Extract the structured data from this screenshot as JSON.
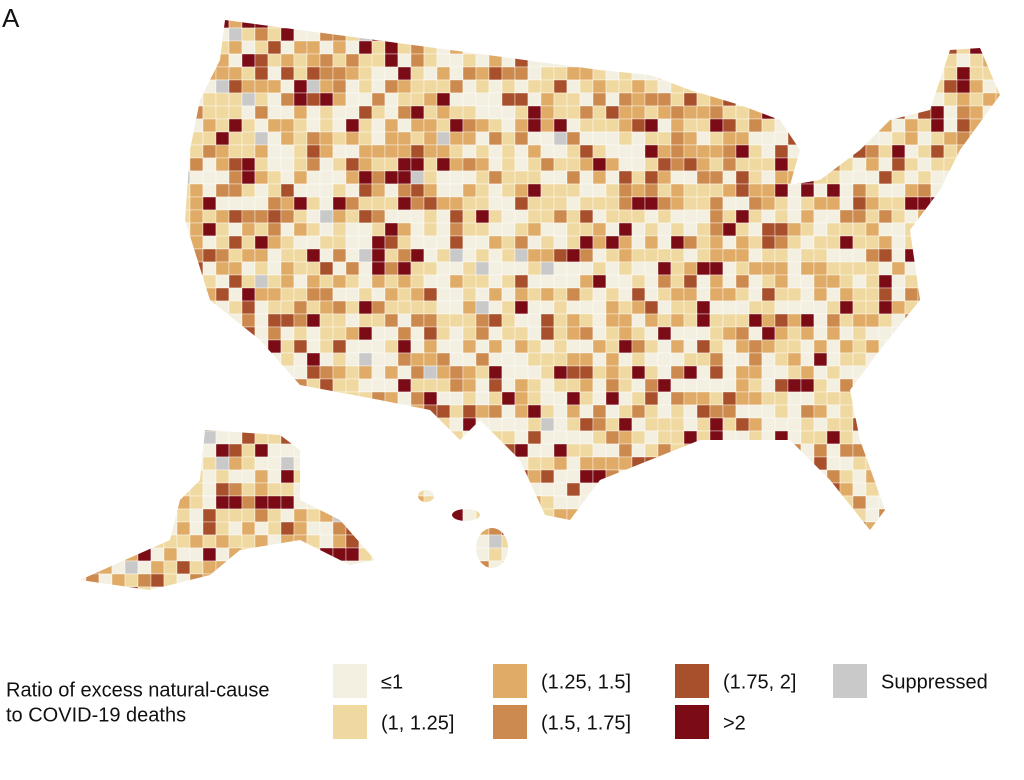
{
  "panel_label": "A",
  "legend": {
    "title": [
      "Ratio of excess natural-cause",
      "to COVID-19 deaths"
    ],
    "items": [
      {
        "label": "≤1",
        "color": "#f3efe1"
      },
      {
        "label": "(1, 1.25]",
        "color": "#f0d9a0"
      },
      {
        "label": "(1.25, 1.5]",
        "color": "#dfab67"
      },
      {
        "label": "(1.5, 1.75]",
        "color": "#cd8a4f"
      },
      {
        "label": "(1.75, 2]",
        "color": "#a8502b"
      },
      {
        "label": ">2",
        "color": "#7b0b14"
      },
      {
        "label": "Suppressed",
        "color": "#c9c9c9"
      }
    ]
  }
}
